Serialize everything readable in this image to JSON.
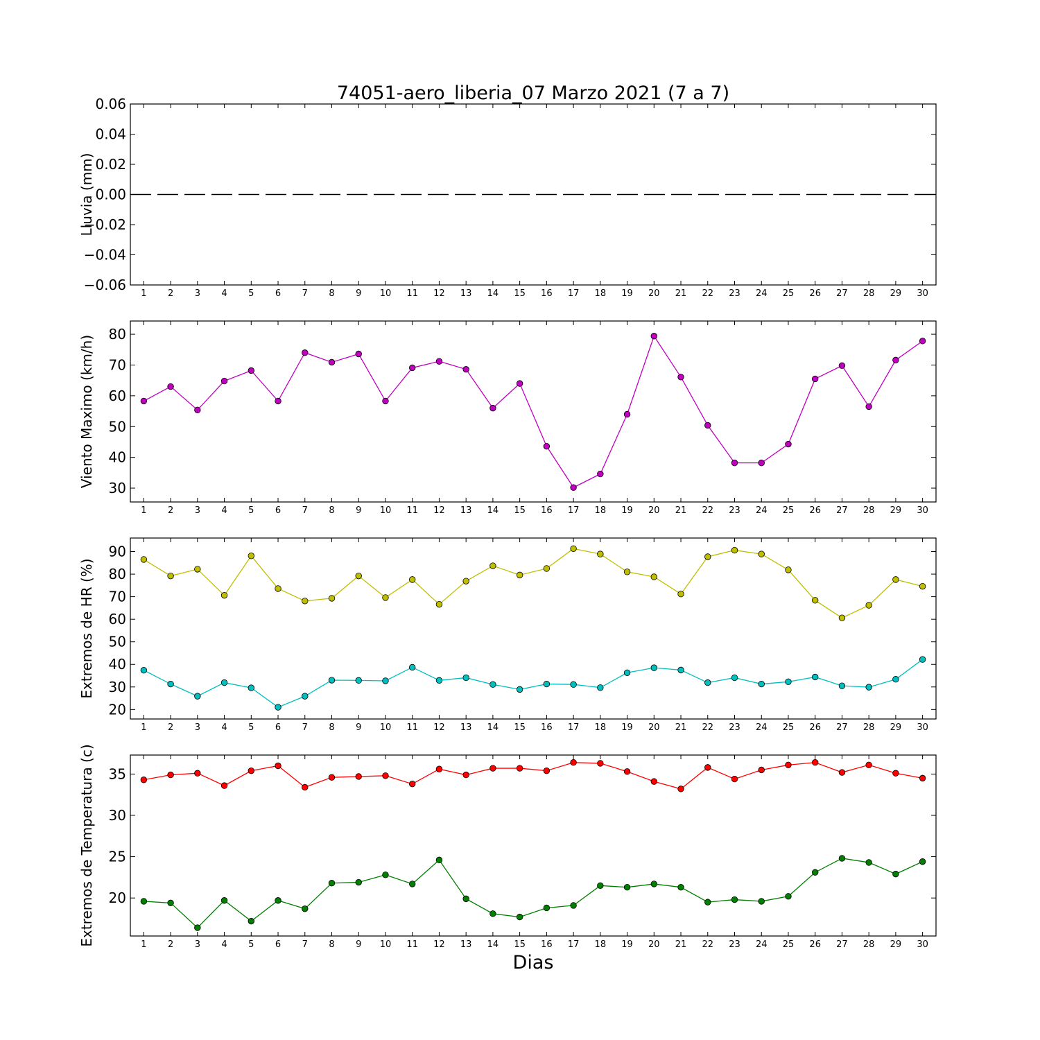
{
  "figure": {
    "title": "74051-aero_liberia_07 Marzo 2021  (7 a 7)",
    "xlabel": "Dias"
  },
  "chart_data": [
    {
      "type": "line",
      "ylabel": "Lluvia (mm)",
      "x": [
        1,
        2,
        3,
        4,
        5,
        6,
        7,
        8,
        9,
        10,
        11,
        12,
        13,
        14,
        15,
        16,
        17,
        18,
        19,
        20,
        21,
        22,
        23,
        24,
        25,
        26,
        27,
        28,
        29,
        30
      ],
      "xlim": [
        0.5,
        30.5
      ],
      "ylim": [
        -0.06,
        0.06
      ],
      "yticks": [
        -0.06,
        -0.04,
        -0.02,
        0.0,
        0.02,
        0.04,
        0.06
      ],
      "ytick_labels": [
        "−0.06",
        "−0.04",
        "−0.02",
        "0.00",
        "0.02",
        "0.04",
        "0.06"
      ],
      "series": [
        {
          "color": "#000000",
          "style": "dashed",
          "markers": false,
          "values": [
            0,
            0,
            0,
            0,
            0,
            0,
            0,
            0,
            0,
            0,
            0,
            0,
            0,
            0,
            0,
            0,
            0,
            0,
            0,
            0,
            0,
            0,
            0,
            0,
            0,
            0,
            0,
            0,
            0,
            0
          ]
        }
      ]
    },
    {
      "type": "line",
      "ylabel": "Viento Maximo (km/h)",
      "x": [
        1,
        2,
        3,
        4,
        5,
        6,
        7,
        8,
        9,
        10,
        11,
        12,
        13,
        14,
        15,
        16,
        17,
        18,
        19,
        20,
        21,
        22,
        23,
        24,
        25,
        26,
        27,
        28,
        29,
        30
      ],
      "xlim": [
        0.5,
        30.5
      ],
      "ylim": [
        25.5,
        84.3
      ],
      "yticks": [
        30,
        40,
        50,
        60,
        70,
        80
      ],
      "ytick_labels": [
        "30",
        "40",
        "50",
        "60",
        "70",
        "80"
      ],
      "series": [
        {
          "color": "#bf00bf",
          "style": "solid",
          "markers": true,
          "values": [
            58.3,
            63.0,
            55.4,
            64.8,
            68.2,
            58.3,
            74.0,
            70.9,
            73.6,
            58.3,
            69.1,
            71.2,
            68.6,
            56.0,
            64.0,
            43.6,
            30.2,
            34.6,
            54.0,
            79.4,
            66.1,
            50.4,
            38.2,
            38.2,
            44.3,
            65.5,
            69.8,
            56.5,
            71.6,
            77.8
          ]
        }
      ]
    },
    {
      "type": "line",
      "ylabel": "Extremos de HR (%)",
      "x": [
        1,
        2,
        3,
        4,
        5,
        6,
        7,
        8,
        9,
        10,
        11,
        12,
        13,
        14,
        15,
        16,
        17,
        18,
        19,
        20,
        21,
        22,
        23,
        24,
        25,
        26,
        27,
        28,
        29,
        30
      ],
      "xlim": [
        0.5,
        30.5
      ],
      "ylim": [
        15.8,
        96.0
      ],
      "yticks": [
        20,
        30,
        40,
        50,
        60,
        70,
        80,
        90
      ],
      "ytick_labels": [
        "20",
        "30",
        "40",
        "50",
        "60",
        "70",
        "80",
        "90"
      ],
      "series": [
        {
          "color": "#bfbf00",
          "style": "solid",
          "markers": true,
          "values": [
            86.5,
            79.2,
            82.2,
            70.6,
            88.1,
            73.6,
            68.1,
            69.3,
            79.2,
            69.6,
            77.6,
            66.6,
            76.9,
            83.7,
            79.6,
            82.5,
            91.3,
            88.9,
            81.0,
            78.8,
            71.2,
            87.7,
            90.6,
            88.9,
            81.9,
            68.4,
            60.6,
            66.2,
            77.6,
            74.6
          ]
        },
        {
          "color": "#00bfbf",
          "style": "solid",
          "markers": true,
          "values": [
            37.4,
            31.3,
            25.9,
            31.9,
            29.6,
            21.0,
            25.9,
            33.0,
            32.9,
            32.7,
            38.7,
            32.9,
            34.1,
            31.1,
            28.9,
            31.3,
            31.1,
            29.7,
            36.3,
            38.5,
            37.5,
            31.9,
            34.1,
            31.3,
            32.3,
            34.4,
            30.5,
            29.9,
            33.4,
            42.2
          ]
        }
      ]
    },
    {
      "type": "line",
      "ylabel": "Extremos de Temperatura (c)",
      "x": [
        1,
        2,
        3,
        4,
        5,
        6,
        7,
        8,
        9,
        10,
        11,
        12,
        13,
        14,
        15,
        16,
        17,
        18,
        19,
        20,
        21,
        22,
        23,
        24,
        25,
        26,
        27,
        28,
        29,
        30
      ],
      "xlim": [
        0.5,
        30.5
      ],
      "ylim": [
        15.4,
        37.3
      ],
      "yticks": [
        20,
        25,
        30,
        35
      ],
      "ytick_labels": [
        "20",
        "25",
        "30",
        "35"
      ],
      "series": [
        {
          "color": "#ff0000",
          "style": "solid",
          "markers": true,
          "values": [
            34.3,
            34.9,
            35.1,
            33.6,
            35.4,
            36.0,
            33.4,
            34.6,
            34.7,
            34.8,
            33.8,
            35.6,
            34.9,
            35.7,
            35.7,
            35.4,
            36.4,
            36.3,
            35.3,
            34.1,
            33.2,
            35.8,
            34.4,
            35.5,
            36.1,
            36.4,
            35.2,
            36.1,
            35.1,
            34.5
          ]
        },
        {
          "color": "#007f00",
          "style": "solid",
          "markers": true,
          "values": [
            19.6,
            19.4,
            16.4,
            19.7,
            17.2,
            19.7,
            18.7,
            21.8,
            21.9,
            22.8,
            21.7,
            24.6,
            19.9,
            18.1,
            17.7,
            18.8,
            19.1,
            21.5,
            21.3,
            21.7,
            21.3,
            19.5,
            19.8,
            19.6,
            20.2,
            23.1,
            24.8,
            24.3,
            22.9,
            24.4
          ]
        }
      ]
    }
  ]
}
